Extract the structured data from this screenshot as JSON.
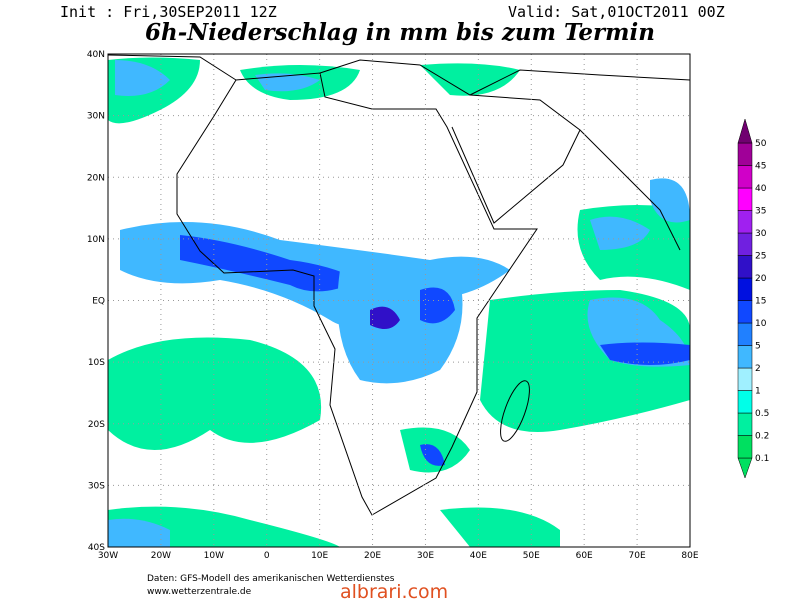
{
  "header": {
    "init": "Init : Fri,30SEP2011 12Z",
    "valid": "Valid: Sat,01OCT2011 00Z",
    "title": "6h-Niederschlag in mm bis zum Termin"
  },
  "map": {
    "lat_labels": [
      "40N",
      "30N",
      "20N",
      "10N",
      "EQ",
      "10S",
      "20S",
      "30S",
      "40S"
    ],
    "lon_labels": [
      "30W",
      "20W",
      "10W",
      "0",
      "10E",
      "20E",
      "30E",
      "40E",
      "50E",
      "60E",
      "70E",
      "80E"
    ]
  },
  "colorbar": {
    "levels": [
      0.1,
      0.2,
      0.5,
      1,
      2,
      5,
      10,
      15,
      20,
      25,
      30,
      35,
      40,
      45,
      50
    ],
    "colors": [
      "#00e060",
      "#00f0a0",
      "#00ffe8",
      "#a0f0ff",
      "#40b8ff",
      "#2080ff",
      "#1048ff",
      "#0010e0",
      "#3010c8",
      "#7020e0",
      "#a020f0",
      "#ff00ff",
      "#d000c8",
      "#a00098",
      "#700070"
    ]
  },
  "footer": {
    "source": "Daten: GFS-Modell des amerikanischen Wetterdienstes",
    "url": "www.wetterzentrale.de",
    "watermark": "albrari.com"
  }
}
